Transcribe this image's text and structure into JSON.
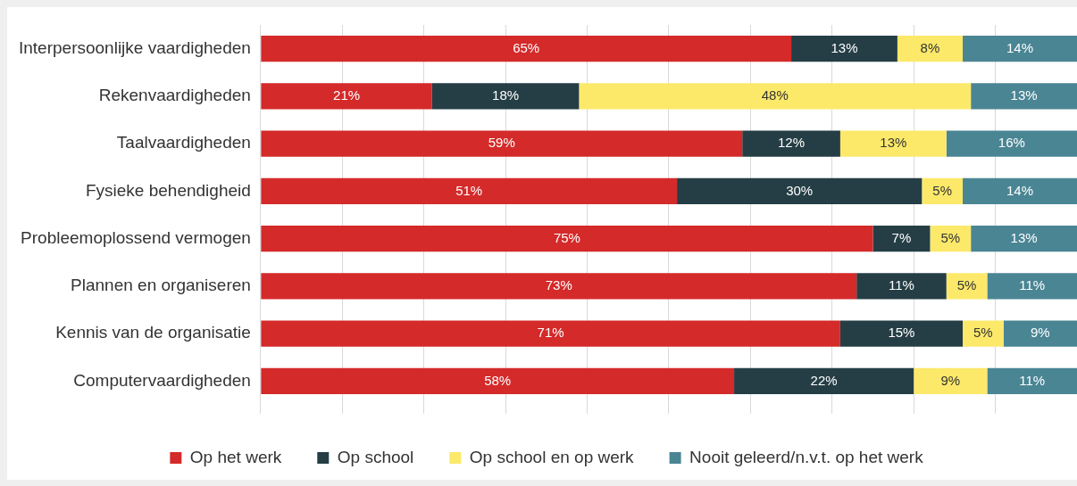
{
  "chart_data": {
    "type": "bar",
    "orientation": "horizontal",
    "stacked": true,
    "categories": [
      "Interpersoonlijke vaardigheden",
      "Rekenvaardigheden",
      "Taalvaardigheden",
      "Fysieke behendigheid",
      "Probleemoplossend vermogen",
      "Plannen en organiseren",
      "Kennis van de organisatie",
      "Computervaardigheden"
    ],
    "series": [
      {
        "name": "Op het werk",
        "color": "#d42a2a",
        "values": [
          65,
          21,
          59,
          51,
          75,
          73,
          71,
          58
        ],
        "value_labels": [
          "65%",
          "21%",
          "59%",
          "51%",
          "75%",
          "73%",
          "71%",
          "58%"
        ]
      },
      {
        "name": "Op school",
        "color": "#253e46",
        "values": [
          13,
          18,
          12,
          30,
          7,
          11,
          15,
          22
        ],
        "value_labels": [
          "13%",
          "18%",
          "12%",
          "30%",
          "7%",
          "11%",
          "15%",
          "22%"
        ]
      },
      {
        "name": "Op school en op werk",
        "color": "#fce96a",
        "values": [
          8,
          48,
          13,
          5,
          5,
          5,
          5,
          9
        ],
        "value_labels": [
          "8%",
          "48%",
          "13%",
          "5%",
          "5%",
          "5%",
          "5%",
          "9%"
        ]
      },
      {
        "name": "Nooit geleerd/n.v.t. op het werk",
        "color": "#4a8594",
        "values": [
          14,
          13,
          16,
          14,
          13,
          11,
          9,
          11
        ],
        "value_labels": [
          "14%",
          "13%",
          "16%",
          "14%",
          "13%",
          "11%",
          "9%",
          "11%"
        ]
      }
    ],
    "xlim": [
      0,
      100
    ],
    "xticks": [
      {
        "value": 0,
        "label": null
      },
      {
        "value": 10,
        "label": null
      },
      {
        "value": 20,
        "label": null
      },
      {
        "value": 30,
        "label": null
      },
      {
        "value": 40,
        "label": null
      },
      {
        "value": 50,
        "label": null
      },
      {
        "value": 60,
        "label": null
      },
      {
        "value": 70,
        "label": null
      },
      {
        "value": 80,
        "label": null
      },
      {
        "value": 90,
        "label": null
      },
      {
        "value": 100,
        "label": null
      }
    ],
    "tick_labels": "y",
    "grid": "x",
    "legend": "bottom"
  }
}
